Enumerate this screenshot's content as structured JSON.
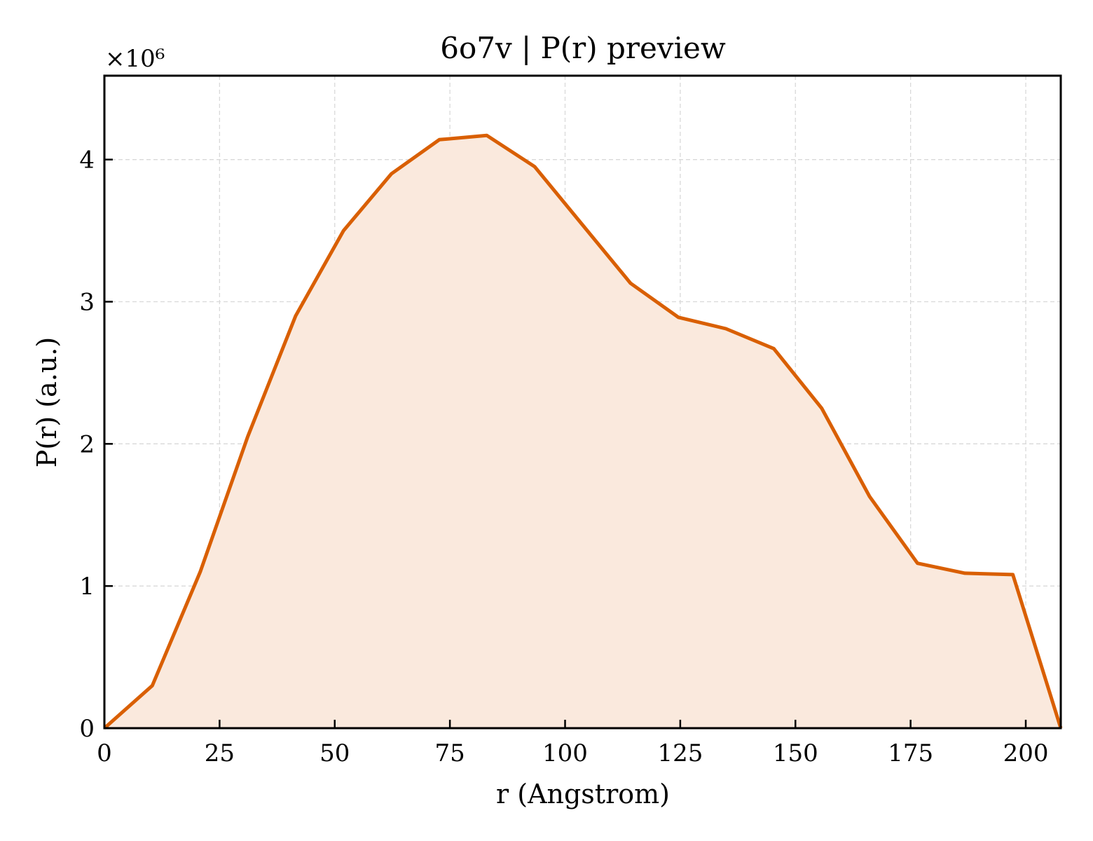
{
  "chart_data": {
    "type": "area",
    "title": "6o7v | P(r) preview",
    "xlabel": "r (Angstrom)",
    "ylabel": "P(r) (a.u.)",
    "y_multiplier_label": "×10⁶",
    "xlim": [
      0,
      207.6
    ],
    "ylim": [
      0,
      4.59
    ],
    "xticks": [
      0,
      25,
      50,
      75,
      100,
      125,
      150,
      175,
      200
    ],
    "yticks": [
      0,
      1,
      2,
      3,
      4
    ],
    "grid": true,
    "line_color": "#d95f02",
    "fill_color": "#fae9dd",
    "series": [
      {
        "x": [
          0,
          10.4,
          20.8,
          31.1,
          41.5,
          51.9,
          62.3,
          72.7,
          83.0,
          93.4,
          103.8,
          114.2,
          124.6,
          134.9,
          145.3,
          155.7,
          166.1,
          176.5,
          186.8,
          197.2,
          207.6
        ],
        "values": [
          0,
          0.3,
          1.1,
          2.05,
          2.9,
          3.5,
          3.9,
          4.14,
          4.17,
          3.95,
          3.54,
          3.13,
          2.89,
          2.81,
          2.67,
          2.25,
          1.63,
          1.16,
          1.09,
          1.08,
          0
        ]
      }
    ]
  }
}
